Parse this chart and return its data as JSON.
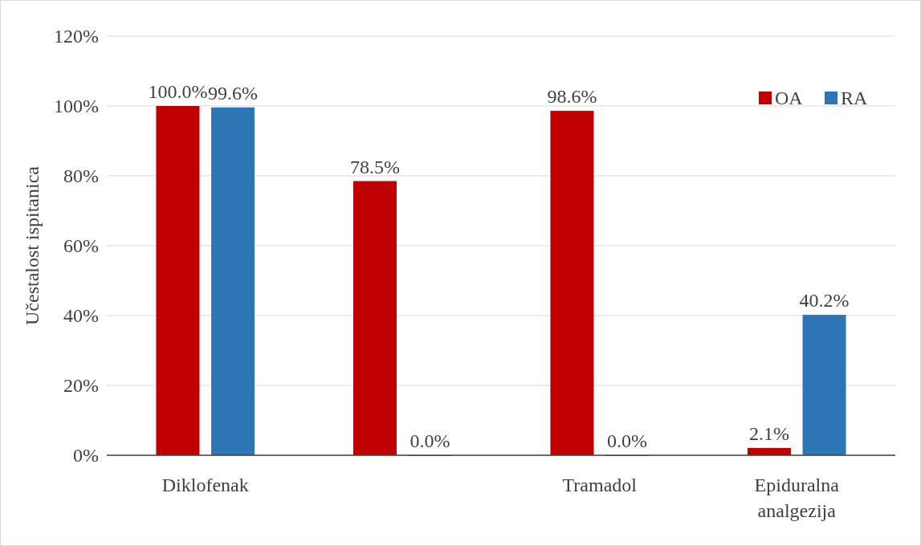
{
  "chart_data": {
    "type": "bar",
    "ylabel": "Učestalost ispitanica",
    "categories": [
      "Diklofenak",
      null,
      "Tramadol",
      "Epiduralna analgezija"
    ],
    "series": [
      {
        "name": "OA",
        "color": "#c00000",
        "values": [
          100.0,
          78.5,
          98.6,
          2.1
        ],
        "value_labels": [
          "100.0%",
          "78.5%",
          "98.6%",
          "2.1%"
        ]
      },
      {
        "name": "RA",
        "color": "#2e75b6",
        "values": [
          99.6,
          0.0,
          0.0,
          40.2
        ],
        "value_labels": [
          "99.6%",
          "0.0%",
          "0.0%",
          "40.2%"
        ]
      }
    ],
    "ylim": [
      0,
      120
    ],
    "yticks": [
      {
        "value": 0,
        "label": "0%"
      },
      {
        "value": 20,
        "label": "20%"
      },
      {
        "value": 40,
        "label": "40%"
      },
      {
        "value": 60,
        "label": "60%"
      },
      {
        "value": 80,
        "label": "80%"
      },
      {
        "value": 100,
        "label": "100%"
      },
      {
        "value": 120,
        "label": "120%"
      }
    ],
    "grid": "y",
    "legend": "top right"
  }
}
